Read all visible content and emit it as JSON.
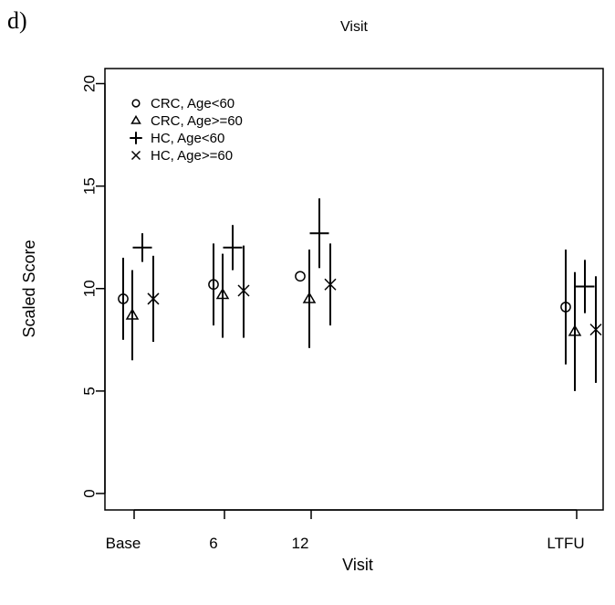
{
  "panel_label": "d)",
  "chart_data": {
    "type": "scatter",
    "title": "Visit",
    "xlabel": "Visit",
    "ylabel": "Scaled Score",
    "ylim": [
      0,
      20
    ],
    "yticks": [
      0,
      5,
      10,
      15,
      20
    ],
    "categories": [
      "Base",
      "6",
      "12",
      "LTFU"
    ],
    "grid": false,
    "legend_position": "top-left",
    "series": [
      {
        "name": "CRC, Age<60",
        "marker": "circle",
        "points": [
          {
            "x": "Base",
            "y": 9.5,
            "low": 7.5,
            "high": 11.5
          },
          {
            "x": "6",
            "y": 10.2,
            "low": 8.2,
            "high": 12.2
          },
          {
            "x": "12",
            "y": 10.6,
            "low": null,
            "high": null
          },
          {
            "x": "LTFU",
            "y": 9.1,
            "low": 6.3,
            "high": 11.9
          }
        ]
      },
      {
        "name": "CRC, Age>=60",
        "marker": "triangle",
        "points": [
          {
            "x": "Base",
            "y": 8.7,
            "low": 6.5,
            "high": 10.9
          },
          {
            "x": "6",
            "y": 9.7,
            "low": 7.6,
            "high": 11.7
          },
          {
            "x": "12",
            "y": 9.5,
            "low": 7.1,
            "high": 11.9
          },
          {
            "x": "LTFU",
            "y": 7.9,
            "low": 5.0,
            "high": 10.8
          }
        ]
      },
      {
        "name": "HC, Age<60",
        "marker": "plus",
        "points": [
          {
            "x": "Base",
            "y": 12.0,
            "low": 11.3,
            "high": 12.7
          },
          {
            "x": "6",
            "y": 12.0,
            "low": 10.9,
            "high": 13.1
          },
          {
            "x": "12",
            "y": 12.7,
            "low": 11.0,
            "high": 14.4
          },
          {
            "x": "LTFU",
            "y": 10.1,
            "low": 8.8,
            "high": 11.4
          }
        ]
      },
      {
        "name": "HC, Age>=60",
        "marker": "cross",
        "points": [
          {
            "x": "Base",
            "y": 9.5,
            "low": 7.4,
            "high": 11.6
          },
          {
            "x": "6",
            "y": 9.9,
            "low": 7.6,
            "high": 12.1
          },
          {
            "x": "12",
            "y": 10.2,
            "low": 8.2,
            "high": 12.2
          },
          {
            "x": "LTFU",
            "y": 8.0,
            "low": 5.4,
            "high": 10.6
          }
        ]
      }
    ]
  }
}
